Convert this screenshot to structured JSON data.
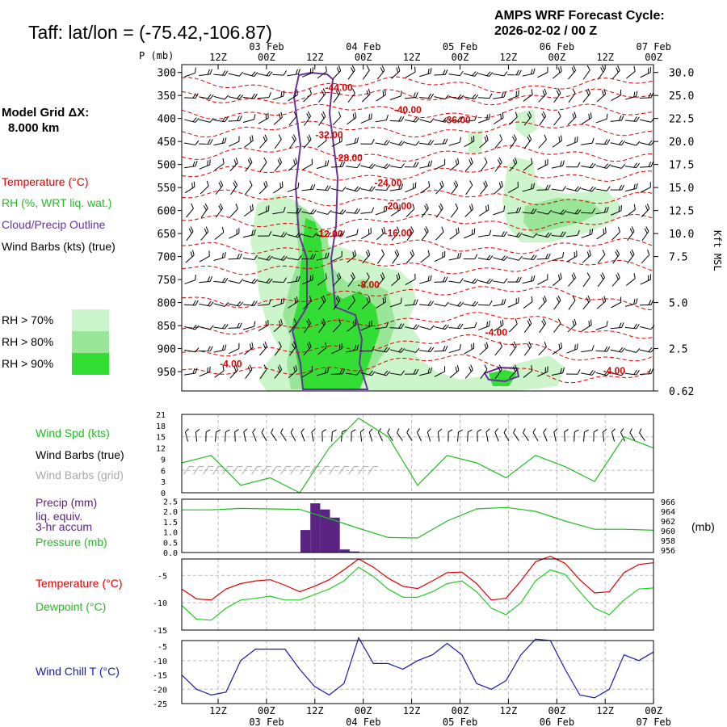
{
  "header": {
    "location": "Taff:  lat/lon = (-75.42,-106.87)",
    "cycle_line1": "AMPS WRF Forecast Cycle:",
    "cycle_line2": "2026-02-02 / 00  Z"
  },
  "left_panel": {
    "grid_label": "Model Grid ΔX:",
    "grid_value": "8.000 km",
    "legend_temp": "Temperature (°C)",
    "legend_rh": "RH (%, WRT liq. wat.)",
    "legend_cloud": "Cloud/Precip Outline",
    "legend_barbs": "Wind Barbs (kts) (true)",
    "rh70": "RH > 70%",
    "rh80": "RH > 80%",
    "rh90": "RH > 90%"
  },
  "colors": {
    "rh70": "#ccf5cc",
    "rh80": "#99e699",
    "rh90": "#33dd33",
    "temp": "#dd0000",
    "cloud": "#663399",
    "wind": "#22bb22",
    "dew": "#22cc22",
    "chill": "#1a1aaa",
    "precip": "#5b2483",
    "grid_barb": "#aaaaaa"
  },
  "chart_data": [
    {
      "type": "heatmap",
      "title": "Vertical cross-section (time-height)",
      "ylabel": "P (mb)",
      "ylabel_right": "Kft MSL",
      "p_ticks": [
        300,
        350,
        400,
        450,
        500,
        550,
        600,
        650,
        700,
        750,
        800,
        850,
        900,
        950
      ],
      "kft_labels": [
        "30.0",
        "25.0",
        "22.5",
        "20.0",
        "17.5",
        "15.0",
        "12.5",
        "10.0",
        "7.5",
        "5.0",
        "2.5",
        "0.62"
      ],
      "kft_pressures": [
        300,
        350,
        400,
        450,
        500,
        550,
        600,
        650,
        700,
        800,
        900,
        992
      ],
      "x_ticks_top": [
        "12Z",
        "00Z",
        "12Z",
        "00Z",
        "12Z",
        "00Z",
        "12Z",
        "00Z",
        "12Z",
        "00Z"
      ],
      "date_labels": [
        "03 Feb",
        "04 Feb",
        "05 Feb",
        "06 Feb",
        "07 Feb"
      ],
      "temperature_labels": [
        {
          "text": "-44.00",
          "hour": 16,
          "p": 340
        },
        {
          "text": "-40.00",
          "hour": 23,
          "p": 388
        },
        {
          "text": "-36.00",
          "hour": 28,
          "p": 410
        },
        {
          "text": "-32.00",
          "hour": 15,
          "p": 443
        },
        {
          "text": "-28.00",
          "hour": 17,
          "p": 493
        },
        {
          "text": "-24.00",
          "hour": 21,
          "p": 547
        },
        {
          "text": "-20.00",
          "hour": 22,
          "p": 597
        },
        {
          "text": "-16.00",
          "hour": 22,
          "p": 656
        },
        {
          "text": "-12.00",
          "hour": 15,
          "p": 658
        },
        {
          "text": "-8.00",
          "hour": 19,
          "p": 768
        },
        {
          "text": "-4.00",
          "hour": 32,
          "p": 872
        },
        {
          "text": "-4.00",
          "hour": 5,
          "p": 940
        },
        {
          "text": "-4.00",
          "hour": 44,
          "p": 955
        }
      ]
    },
    {
      "type": "line",
      "title": "Wind Spd (kts)",
      "label_barbs_true": "Wind Barbs (true)",
      "label_barbs_grid": "Wind Barbs (grid)",
      "y_ticks": [
        "0",
        "3",
        "6",
        "9",
        "12",
        "15",
        "18",
        "21"
      ],
      "ylim": [
        0,
        21
      ],
      "x": [
        0,
        3,
        6,
        9,
        12,
        15,
        18,
        21,
        24,
        27,
        30,
        33,
        36,
        39,
        42,
        45,
        48
      ],
      "values": [
        8,
        10,
        2,
        4,
        0,
        12,
        20,
        15,
        2,
        10,
        8,
        4,
        10,
        7,
        3,
        15,
        12
      ]
    },
    {
      "type": "bar",
      "title": "Precip (mm)",
      "label_liq": "liq. equiv.",
      "label_accum": "3-hr accum",
      "label_pressure": "Pressure (mb)",
      "right_unit": "(mb)",
      "y_ticks_left": [
        "0.0",
        "0.5",
        "1.0",
        "1.5",
        "2.0",
        "2.5"
      ],
      "y_ticks_right": [
        "956",
        "958",
        "960",
        "962",
        "964",
        "966"
      ],
      "precip": {
        "x": [
          12,
          13,
          14,
          15,
          16,
          17
        ],
        "values": [
          1.1,
          2.4,
          2.1,
          1.7,
          0.15,
          0.05
        ]
      },
      "pressure": {
        "x": [
          0,
          3,
          6,
          9,
          12,
          15,
          18,
          21,
          24,
          27,
          30,
          33,
          36,
          39,
          42,
          45,
          48
        ],
        "values": [
          964.3,
          964.3,
          964.6,
          964.5,
          964.4,
          962.5,
          960.5,
          958.6,
          958.5,
          962,
          964.5,
          964.8,
          964,
          962,
          960.3,
          960.3,
          960.1
        ]
      }
    },
    {
      "type": "line",
      "title_temp": "Temperature (°C)",
      "title_dew": "Dewpoint (°C)",
      "y_ticks": [
        "-5",
        "-10",
        "-15"
      ],
      "ylim": [
        -15,
        -2
      ],
      "x": [
        0,
        1.5,
        3,
        4.5,
        6,
        7.5,
        9,
        10.5,
        12,
        13.5,
        15,
        16.5,
        18,
        19.5,
        21,
        22.5,
        24,
        25.5,
        27,
        28.5,
        30,
        31.5,
        33,
        34.5,
        36,
        37.5,
        39,
        40.5,
        42,
        43.5,
        45,
        46.5,
        48
      ],
      "series": [
        {
          "name": "Temperature",
          "values": [
            -7.5,
            -9.3,
            -9.5,
            -7.5,
            -6.5,
            -6,
            -5.8,
            -6.8,
            -8,
            -7,
            -5.8,
            -4,
            -2,
            -3.5,
            -5.5,
            -7,
            -7.4,
            -6,
            -4.5,
            -4.4,
            -6.5,
            -9.5,
            -9.2,
            -6,
            -2.5,
            -1.5,
            -2.8,
            -5.8,
            -8.2,
            -8,
            -4.5,
            -3,
            -2.7
          ]
        },
        {
          "name": "Dewpoint",
          "values": [
            -10.5,
            -13,
            -13.2,
            -11,
            -9.5,
            -9.2,
            -8.8,
            -9.5,
            -9.5,
            -8.5,
            -7.5,
            -6,
            -3.5,
            -5.2,
            -7.5,
            -9,
            -9,
            -8,
            -6.5,
            -6,
            -8,
            -11,
            -12.2,
            -10,
            -6,
            -4,
            -4.8,
            -8,
            -11,
            -12.2,
            -9.5,
            -7.5,
            -7.3
          ]
        }
      ]
    },
    {
      "type": "line",
      "title": "Wind Chill T (°C)",
      "y_ticks": [
        "-5",
        "-10",
        "-15",
        "-20",
        "-25"
      ],
      "ylim": [
        -25,
        -3
      ],
      "x": [
        0,
        1.5,
        3,
        4.5,
        6,
        7.5,
        9,
        10.5,
        12,
        13.5,
        15,
        16.5,
        18,
        19.5,
        21,
        22.5,
        24,
        25.5,
        27,
        28.5,
        30,
        31.5,
        33,
        34.5,
        36,
        37.5,
        39,
        40.5,
        42,
        43.5,
        45,
        46.5,
        48
      ],
      "values": [
        -15,
        -20,
        -22,
        -21,
        -10,
        -6,
        -6,
        -6,
        -13,
        -19,
        -22,
        -18,
        -2,
        -11,
        -11,
        -13,
        -10,
        -8,
        -4,
        -8,
        -18,
        -20,
        -17,
        -8,
        -2.5,
        -3,
        -13,
        -22,
        -23,
        -20,
        -8,
        -10,
        -7
      ]
    }
  ],
  "x_axis_bottom": {
    "ticks": [
      "12Z",
      "00Z",
      "12Z",
      "00Z",
      "12Z",
      "00Z",
      "12Z",
      "00Z",
      "12Z",
      "00Z"
    ],
    "dates": [
      "03 Feb",
      "04 Feb",
      "05 Feb",
      "06 Feb",
      "07 Feb"
    ]
  }
}
